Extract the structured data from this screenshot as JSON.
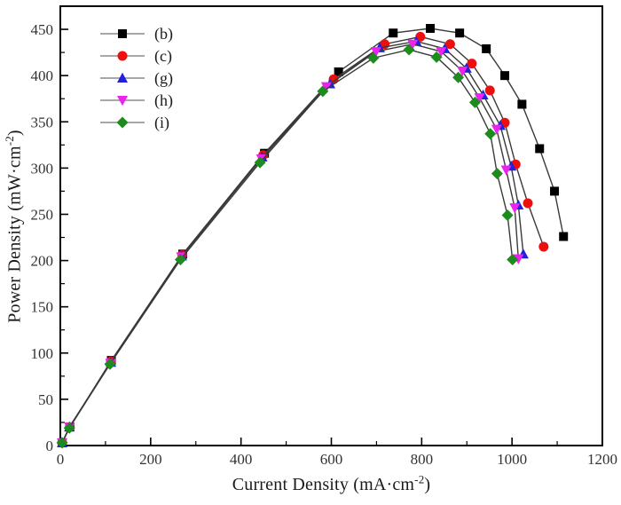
{
  "chart_data": {
    "type": "line",
    "title": "",
    "xlabel": "Current Density (mA·cm^-2)",
    "xlabel_parts": {
      "pre": "Current Density (mA·cm",
      "sup": "-2",
      "post": ")"
    },
    "ylabel": "Power Density (mW·cm^-2)",
    "ylabel_parts": {
      "pre": "Power Density (mW·cm",
      "sup": "-2",
      "post": ")"
    },
    "xlim": [
      0,
      1200
    ],
    "ylim": [
      0,
      475
    ],
    "x_major_ticks": [
      0,
      200,
      400,
      600,
      800,
      1000,
      1200
    ],
    "x_minor_ticks": [
      100,
      300,
      500,
      700,
      900,
      1100
    ],
    "y_major_ticks": [
      0,
      50,
      100,
      150,
      200,
      250,
      300,
      350,
      400,
      450
    ],
    "y_minor_ticks": [
      25,
      75,
      125,
      175,
      225,
      275,
      325,
      375,
      425
    ],
    "grid": false,
    "legend_position": "top-left",
    "frame_color": "#000000",
    "line_color": "#3a3a3a",
    "legend_line_color": "#8a8a8a",
    "tick_label_color": "#333333",
    "series": [
      {
        "name": "(b)",
        "marker": "square",
        "color": "#000000",
        "points": [
          [
            4,
            3
          ],
          [
            21,
            20
          ],
          [
            113,
            92
          ],
          [
            271,
            207
          ],
          [
            452,
            316
          ],
          [
            616,
            404
          ],
          [
            737,
            446
          ],
          [
            819,
            451
          ],
          [
            884,
            446
          ],
          [
            943,
            429
          ],
          [
            984,
            400
          ],
          [
            1022,
            369
          ],
          [
            1061,
            321
          ],
          [
            1094,
            275
          ],
          [
            1114,
            226
          ]
        ]
      },
      {
        "name": "(c)",
        "marker": "circle",
        "color": "#ee0e0e",
        "points": [
          [
            4,
            3
          ],
          [
            21,
            20
          ],
          [
            112,
            91
          ],
          [
            270,
            206
          ],
          [
            449,
            314
          ],
          [
            605,
            396
          ],
          [
            718,
            434
          ],
          [
            797,
            442
          ],
          [
            863,
            434
          ],
          [
            911,
            413
          ],
          [
            951,
            384
          ],
          [
            984,
            349
          ],
          [
            1008,
            304
          ],
          [
            1035,
            262
          ],
          [
            1070,
            215
          ]
        ]
      },
      {
        "name": "(g)",
        "marker": "triangle-up",
        "color": "#2222dd",
        "points": [
          [
            4,
            3
          ],
          [
            20,
            20
          ],
          [
            112,
            90
          ],
          [
            269,
            205
          ],
          [
            447,
            312
          ],
          [
            597,
            391
          ],
          [
            707,
            430
          ],
          [
            788,
            437
          ],
          [
            851,
            429
          ],
          [
            899,
            408
          ],
          [
            936,
            379
          ],
          [
            974,
            346
          ],
          [
            998,
            302
          ],
          [
            1014,
            260
          ],
          [
            1025,
            207
          ]
        ]
      },
      {
        "name": "(h)",
        "marker": "triangle-down",
        "color": "#ee22ee",
        "points": [
          [
            4,
            3
          ],
          [
            20,
            20
          ],
          [
            111,
            89
          ],
          [
            268,
            204
          ],
          [
            445,
            310
          ],
          [
            589,
            388
          ],
          [
            699,
            426
          ],
          [
            780,
            434
          ],
          [
            843,
            426
          ],
          [
            890,
            405
          ],
          [
            928,
            376
          ],
          [
            966,
            342
          ],
          [
            987,
            298
          ],
          [
            1006,
            257
          ],
          [
            1014,
            202
          ]
        ]
      },
      {
        "name": "(i)",
        "marker": "diamond",
        "color": "#1e8b1e",
        "points": [
          [
            4,
            3
          ],
          [
            20,
            19
          ],
          [
            110,
            88
          ],
          [
            266,
            201
          ],
          [
            442,
            306
          ],
          [
            581,
            383
          ],
          [
            693,
            419
          ],
          [
            772,
            428
          ],
          [
            833,
            420
          ],
          [
            881,
            398
          ],
          [
            918,
            371
          ],
          [
            952,
            337
          ],
          [
            967,
            294
          ],
          [
            990,
            249
          ],
          [
            1001,
            201
          ]
        ]
      }
    ]
  }
}
